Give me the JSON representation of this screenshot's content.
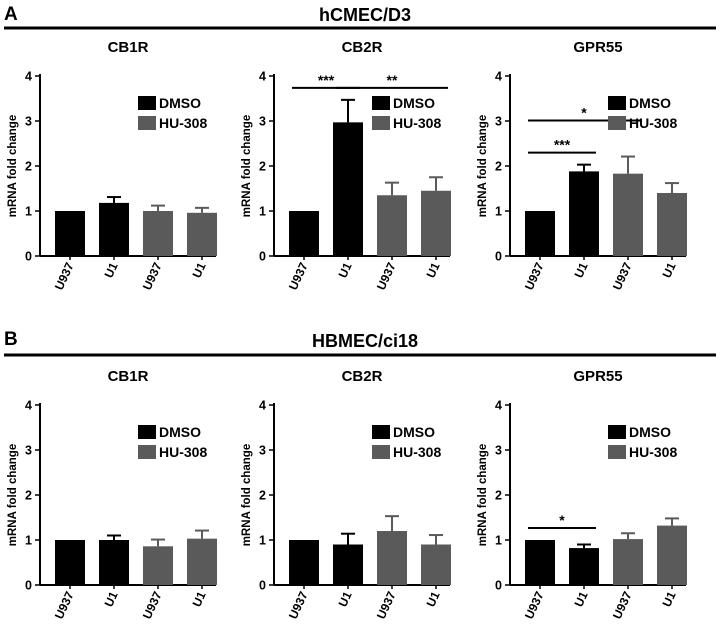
{
  "figure": {
    "panels": [
      {
        "letter": "A",
        "cell_line": "hCMEC/D3"
      },
      {
        "letter": "B",
        "cell_line": "HBMEC/ci18"
      }
    ],
    "legend_items": [
      {
        "label": "DMSO",
        "color": "#000000"
      },
      {
        "label": "HU-308",
        "color": "#5a5a5a"
      }
    ],
    "ylabel": "mRNA fold change"
  },
  "chart_data": [
    {
      "type": "bar",
      "panel": "A",
      "title": "CB1R",
      "ylabel": "mRNA fold change",
      "ylim": [
        0,
        4
      ],
      "yticks": [
        0,
        1,
        2,
        3,
        4
      ],
      "categories": [
        "U937",
        "U1",
        "U937",
        "U1"
      ],
      "treatment": [
        "DMSO",
        "DMSO",
        "HU-308",
        "HU-308"
      ],
      "values": [
        1.0,
        1.18,
        1.0,
        0.96
      ],
      "errors": [
        0,
        0.13,
        0.12,
        0.11
      ],
      "significance": []
    },
    {
      "type": "bar",
      "panel": "A",
      "title": "CB2R",
      "ylabel": "mRNA fold change",
      "ylim": [
        0,
        4
      ],
      "yticks": [
        0,
        1,
        2,
        3,
        4
      ],
      "categories": [
        "U937",
        "U1",
        "U937",
        "U1"
      ],
      "treatment": [
        "DMSO",
        "DMSO",
        "HU-308",
        "HU-308"
      ],
      "values": [
        1.0,
        2.97,
        1.35,
        1.45
      ],
      "errors": [
        0,
        0.5,
        0.28,
        0.3
      ],
      "significance": [
        {
          "from": 0,
          "to": 1,
          "label": "***"
        },
        {
          "from": 1,
          "to": 3,
          "label": "**"
        }
      ]
    },
    {
      "type": "bar",
      "panel": "A",
      "title": "GPR55",
      "ylabel": "mRNA fold change",
      "ylim": [
        0,
        4
      ],
      "yticks": [
        0,
        1,
        2,
        3,
        4
      ],
      "categories": [
        "U937",
        "U1",
        "U937",
        "U1"
      ],
      "treatment": [
        "DMSO",
        "DMSO",
        "HU-308",
        "HU-308"
      ],
      "values": [
        1.0,
        1.88,
        1.83,
        1.4
      ],
      "errors": [
        0,
        0.15,
        0.38,
        0.22
      ],
      "significance": [
        {
          "from": 0,
          "to": 1,
          "label": "***"
        },
        {
          "from": 0,
          "to": 2,
          "label": "*"
        }
      ]
    },
    {
      "type": "bar",
      "panel": "B",
      "title": "CB1R",
      "ylabel": "mRNA fold change",
      "ylim": [
        0,
        4
      ],
      "yticks": [
        0,
        1,
        2,
        3,
        4
      ],
      "categories": [
        "U937",
        "U1",
        "U937",
        "U1"
      ],
      "treatment": [
        "DMSO",
        "DMSO",
        "HU-308",
        "HU-308"
      ],
      "values": [
        1.0,
        1.0,
        0.86,
        1.03
      ],
      "errors": [
        0,
        0.1,
        0.15,
        0.18
      ],
      "significance": []
    },
    {
      "type": "bar",
      "panel": "B",
      "title": "CB2R",
      "ylabel": "mRNA fold change",
      "ylim": [
        0,
        4
      ],
      "yticks": [
        0,
        1,
        2,
        3,
        4
      ],
      "categories": [
        "U937",
        "U1",
        "U937",
        "U1"
      ],
      "treatment": [
        "DMSO",
        "DMSO",
        "HU-308",
        "HU-308"
      ],
      "values": [
        1.0,
        0.9,
        1.2,
        0.9
      ],
      "errors": [
        0,
        0.24,
        0.33,
        0.21
      ],
      "significance": []
    },
    {
      "type": "bar",
      "panel": "B",
      "title": "GPR55",
      "ylabel": "mRNA fold change",
      "ylim": [
        0,
        4
      ],
      "yticks": [
        0,
        1,
        2,
        3,
        4
      ],
      "categories": [
        "U937",
        "U1",
        "U937",
        "U1"
      ],
      "treatment": [
        "DMSO",
        "DMSO",
        "HU-308",
        "HU-308"
      ],
      "values": [
        1.0,
        0.82,
        1.02,
        1.32
      ],
      "errors": [
        0,
        0.08,
        0.13,
        0.16
      ],
      "significance": [
        {
          "from": 0,
          "to": 1,
          "label": "*"
        }
      ]
    }
  ]
}
